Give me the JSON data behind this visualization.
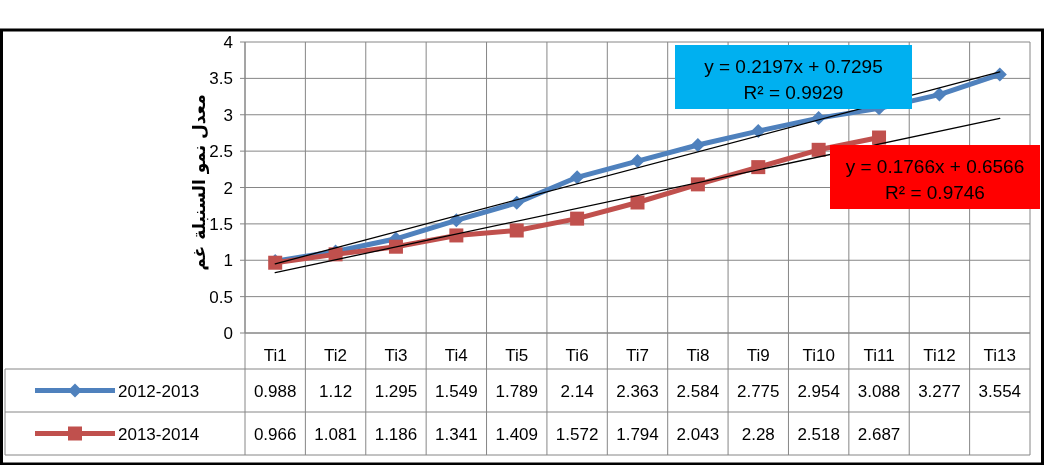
{
  "chart_data": {
    "type": "line",
    "ylabel": "معدل نمو السنبلة غم",
    "categories": [
      "Ti1",
      "Ti2",
      "Ti3",
      "Ti4",
      "Ti5",
      "Ti6",
      "Ti7",
      "Ti8",
      "Ti9",
      "Ti10",
      "Ti11",
      "Ti12",
      "Ti13"
    ],
    "series": [
      {
        "name": "2012-2013",
        "color": "#4f81bd",
        "marker": "diamond",
        "values": [
          0.988,
          1.12,
          1.295,
          1.549,
          1.789,
          2.14,
          2.363,
          2.584,
          2.775,
          2.954,
          3.088,
          3.277,
          3.554
        ],
        "value_labels": [
          "0.988",
          "1.12",
          "1.295",
          "1.549",
          "1.789",
          "2.14",
          "2.363",
          "2.584",
          "2.775",
          "2.954",
          "3.088",
          "3.277",
          "3.554"
        ]
      },
      {
        "name": "2013-2014",
        "color": "#c0504d",
        "marker": "square",
        "values": [
          0.966,
          1.081,
          1.186,
          1.341,
          1.409,
          1.572,
          1.794,
          2.043,
          2.28,
          2.518,
          2.687,
          null,
          null
        ],
        "value_labels": [
          "0.966",
          "1.081",
          "1.186",
          "1.341",
          "1.409",
          "1.572",
          "1.794",
          "2.043",
          "2.28",
          "2.518",
          "2.687",
          null,
          null
        ]
      },
      {
        "type": "line",
        "color": "#000000",
        "marker": "none",
        "x": [
          "Ti1",
          "Ti13"
        ],
        "values": [
          0.95,
          3.59
        ]
      },
      {
        "type": "line",
        "color": "#000000",
        "marker": "none",
        "x": [
          "Ti1",
          "Ti13"
        ],
        "values": [
          0.83,
          2.95
        ]
      }
    ],
    "ylim": [
      0,
      4
    ],
    "yticks": [
      0,
      0.5,
      1,
      1.5,
      2,
      2.5,
      3,
      3.5,
      4
    ],
    "grid": "y",
    "legend": "bottom",
    "annotations": [
      "y = 0.2197x + 0.7295\nR² = 0.9929",
      "y = 0.1766x + 0.6566\nR² = 0.9746"
    ]
  }
}
